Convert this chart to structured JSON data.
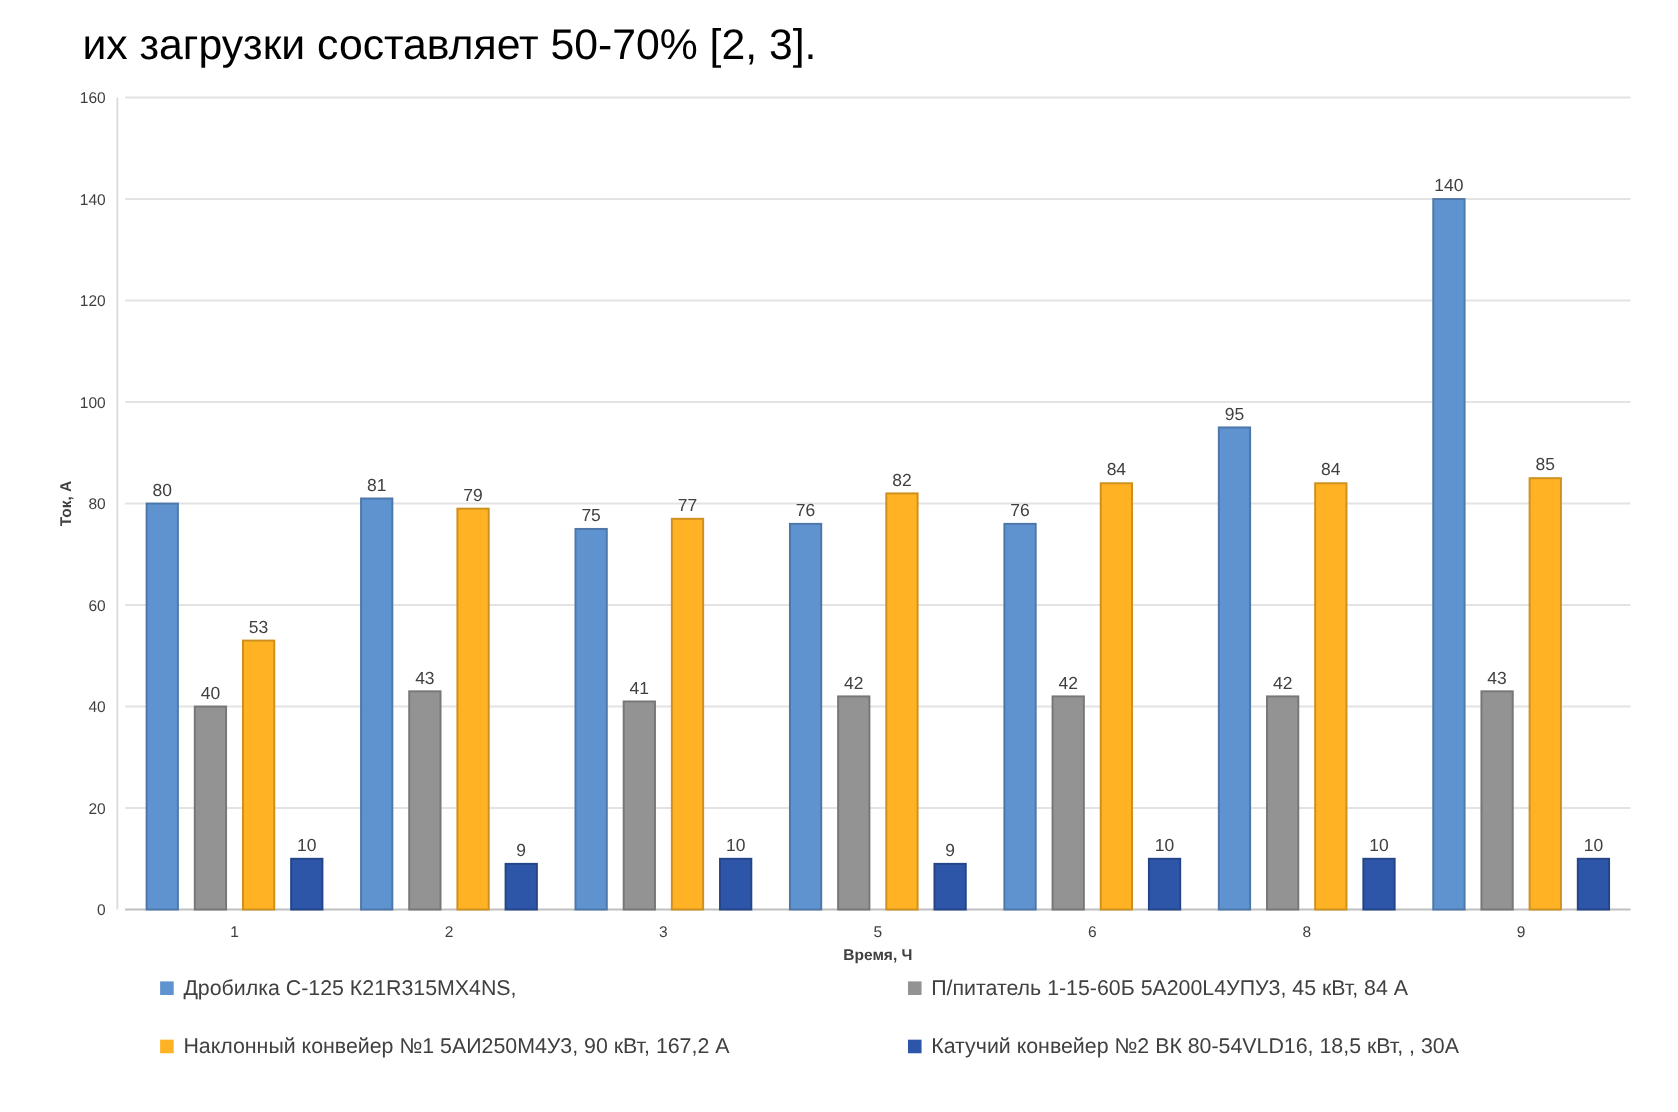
{
  "chart_data": {
    "type": "bar",
    "categories": [
      "1",
      "2",
      "3",
      "5",
      "6",
      "8",
      "9"
    ],
    "xlabel": "Время, Ч",
    "ylabel": "Ток, А",
    "annotations": [
      "их загрузки составляет 50-70% [2, 3]."
    ],
    "series": [
      {
        "name": "Дробилка С-125 К21R315MX4NS,",
        "color": "#5f93d0",
        "values": [
          80,
          81,
          75,
          76,
          76,
          95,
          140
        ]
      },
      {
        "name": "П/питатель 1-15-60Б 5А200L4УПУ3, 45 кВт, 84 А",
        "color": "#939393",
        "values": [
          40,
          43,
          41,
          42,
          42,
          42,
          43
        ]
      },
      {
        "name": "Наклонный конвейер №1 5АИ250М4У3, 90 кВт, 167,2 А",
        "color": "#ffb224",
        "values": [
          53,
          79,
          77,
          82,
          84,
          84,
          85
        ]
      },
      {
        "name": "Катучий конвейер №2 ВК 80-54VLD16, 18,5 кВт, , 30А",
        "color": "#2d55a8",
        "values": [
          10,
          9,
          10,
          9,
          10,
          10,
          10
        ]
      }
    ],
    "ylim": [
      0,
      160
    ],
    "yticks": [
      0,
      20,
      40,
      60,
      80,
      100,
      120,
      140,
      160
    ],
    "grid": "y",
    "data_labels": true,
    "legend": "bottom"
  }
}
